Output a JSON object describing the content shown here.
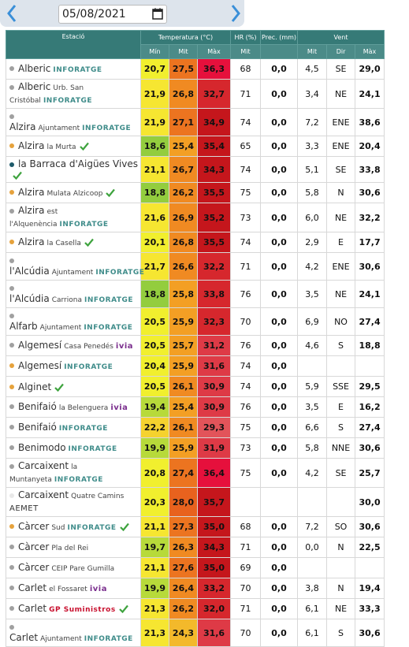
{
  "date": "05/08/2021",
  "table": {
    "headers": {
      "station": "Estació",
      "temp": "Temperatura (°C)",
      "hr": "HR (%)",
      "prec": "Prec. (mm)",
      "wind": "Vent",
      "min": "Mín",
      "mit": "Mit",
      "max": "Màx",
      "hr_mit": "Mit",
      "wind_mit": "Mit",
      "dir": "Dir",
      "wind_max": "Màx"
    },
    "rows": [
      {
        "name": "Alberic",
        "tag": "INFORATGE",
        "dot": "#a0a0a0",
        "tmin": "20,7",
        "tmit": "27,5",
        "tmax": "36,3",
        "hr": "68",
        "prec": "0,0",
        "wmit": "4,5",
        "dir": "SE",
        "wmax": "29,0"
      },
      {
        "name": "Alberic",
        "place": "Urb. San Cristóbal",
        "tag": "INFORATGE",
        "dot": "#a0a0a0",
        "tmin": "21,9",
        "tmit": "26,8",
        "tmax": "32,7",
        "hr": "71",
        "prec": "0,0",
        "wmit": "3,4",
        "dir": "NE",
        "wmax": "24,1"
      },
      {
        "name": "Alzira",
        "place": "Ajuntament",
        "tag": "INFORATGE",
        "dot": "#a0a0a0",
        "tmin": "21,9",
        "tmit": "27,1",
        "tmax": "34,9",
        "hr": "74",
        "prec": "0,0",
        "wmit": "7,2",
        "dir": "ENE",
        "wmax": "38,6"
      },
      {
        "name": "Alzira",
        "place": "la Murta",
        "check": true,
        "dot": "#e6a23c",
        "tmin": "18,6",
        "tmit": "25,4",
        "tmax": "35,4",
        "hr": "65",
        "prec": "0,0",
        "wmit": "3,3",
        "dir": "ENE",
        "wmax": "20,4"
      },
      {
        "name": "la Barraca d'Aigües Vives",
        "check": true,
        "dot": "#1d5a6a",
        "tmin": "21,1",
        "tmit": "26,7",
        "tmax": "34,3",
        "hr": "74",
        "prec": "0,0",
        "wmit": "5,1",
        "dir": "SE",
        "wmax": "33,8"
      },
      {
        "name": "Alzira",
        "place": "Mulata Alzicoop",
        "check": true,
        "dot": "#e6a23c",
        "tmin": "18,8",
        "tmit": "26,2",
        "tmax": "35,5",
        "hr": "75",
        "prec": "0,0",
        "wmit": "5,8",
        "dir": "N",
        "wmax": "30,6"
      },
      {
        "name": "Alzira",
        "place": "est l'Alquenència",
        "tag": "INFORATGE",
        "dot": "#a0a0a0",
        "tmin": "21,6",
        "tmit": "26,9",
        "tmax": "35,2",
        "hr": "73",
        "prec": "0,0",
        "wmit": "6,0",
        "dir": "NE",
        "wmax": "32,2"
      },
      {
        "name": "Alzira",
        "place": "la Casella",
        "check": true,
        "dot": "#e6a23c",
        "tmin": "20,1",
        "tmit": "26,8",
        "tmax": "35,5",
        "hr": "74",
        "prec": "0,0",
        "wmit": "2,9",
        "dir": "E",
        "wmax": "17,7"
      },
      {
        "name": "l'Alcúdia",
        "place": "Ajuntament",
        "tag": "INFORATGE",
        "dot": "#a0a0a0",
        "tmin": "21,7",
        "tmit": "26,6",
        "tmax": "32,2",
        "hr": "71",
        "prec": "0,0",
        "wmit": "4,2",
        "dir": "ENE",
        "wmax": "30,6"
      },
      {
        "name": "l'Alcúdia",
        "place": "Carriona",
        "tag": "INFORATGE",
        "dot": "#a0a0a0",
        "tmin": "18,8",
        "tmit": "25,8",
        "tmax": "33,8",
        "hr": "76",
        "prec": "0,0",
        "wmit": "3,5",
        "dir": "NE",
        "wmax": "24,1"
      },
      {
        "name": "Alfarb",
        "place": "Ajuntament",
        "tag": "INFORATGE",
        "dot": "#a0a0a0",
        "tmin": "20,5",
        "tmit": "25,9",
        "tmax": "32,3",
        "hr": "70",
        "prec": "0,0",
        "wmit": "6,9",
        "dir": "NO",
        "wmax": "27,4"
      },
      {
        "name": "Algemesí",
        "place": "Casa Penedés",
        "tag": "ivia",
        "dot": "#a0a0a0",
        "tmin": "20,5",
        "tmit": "25,7",
        "tmax": "31,2",
        "hr": "76",
        "prec": "0,0",
        "wmit": "4,6",
        "dir": "S",
        "wmax": "18,8"
      },
      {
        "name": "Algemesí",
        "tag": "INFORATGE",
        "dot": "#e6a23c",
        "tmin": "20,4",
        "tmit": "25,9",
        "tmax": "31,6",
        "hr": "74",
        "prec": "0,0",
        "wmit": null,
        "dir": null,
        "wmax": null
      },
      {
        "name": "Alginet",
        "check": true,
        "dot": "#e6a23c",
        "tmin": "20,5",
        "tmit": "26,1",
        "tmax": "30,9",
        "hr": "74",
        "prec": "0,0",
        "wmit": "5,9",
        "dir": "SSE",
        "wmax": "29,5"
      },
      {
        "name": "Benifaió",
        "place": "la Belenguera",
        "tag": "ivia",
        "dot": "#a0a0a0",
        "tmin": "19,4",
        "tmit": "25,4",
        "tmax": "30,9",
        "hr": "76",
        "prec": "0,0",
        "wmit": "3,5",
        "dir": "E",
        "wmax": "16,2"
      },
      {
        "name": "Benifaió",
        "tag": "INFORATGE",
        "dot": "#a0a0a0",
        "tmin": "22,2",
        "tmit": "26,1",
        "tmax": "29,3",
        "hr": "75",
        "prec": "0,0",
        "wmit": "6,6",
        "dir": "S",
        "wmax": "27,4"
      },
      {
        "name": "Benimodo",
        "tag": "INFORATGE",
        "dot": "#a0a0a0",
        "tmin": "19,9",
        "tmit": "25,9",
        "tmax": "31,9",
        "hr": "73",
        "prec": "0,0",
        "wmit": "5,8",
        "dir": "NNE",
        "wmax": "30,6"
      },
      {
        "name": "Carcaixent",
        "place": "la Muntanyeta",
        "tag": "INFORATGE",
        "dot": "#a0a0a0",
        "tmin": "20,8",
        "tmit": "27,4",
        "tmax": "36,4",
        "hr": "75",
        "prec": "0,0",
        "wmit": "4,2",
        "dir": "SE",
        "wmax": "25,7"
      },
      {
        "name": "Carcaixent",
        "place": "Quatre Camins",
        "tag": "AEMET",
        "dot": "#e8e8e8",
        "tmin": "20,3",
        "tmit": "28,0",
        "tmax": "35,7",
        "hr": null,
        "prec": null,
        "wmit": null,
        "dir": null,
        "wmax": "30,0"
      },
      {
        "name": "Càrcer",
        "place": "Sud",
        "tag": "INFORATGE",
        "check": true,
        "dot": "#e6a23c",
        "tmin": "21,1",
        "tmit": "27,3",
        "tmax": "35,0",
        "hr": "68",
        "prec": "0,0",
        "wmit": "7,2",
        "dir": "SO",
        "wmax": "30,6"
      },
      {
        "name": "Càrcer",
        "place": "Pla del Rei",
        "dot": "#a0a0a0",
        "tmin": "19,7",
        "tmit": "26,3",
        "tmax": "34,3",
        "hr": "71",
        "prec": "0,0",
        "wmit": "0,0",
        "dir": "N",
        "wmax": "22,5"
      },
      {
        "name": "Càrcer",
        "place": "CEIP Pare Gumilla",
        "dot": "#a0a0a0",
        "tmin": "21,1",
        "tmit": "27,6",
        "tmax": "35,0",
        "hr": "69",
        "prec": "0,0",
        "wmit": null,
        "dir": null,
        "wmax": null
      },
      {
        "name": "Carlet",
        "place": "el Fossaret",
        "tag": "ivia",
        "dot": "#a0a0a0",
        "tmin": "19,9",
        "tmit": "26,4",
        "tmax": "33,2",
        "hr": "70",
        "prec": "0,0",
        "wmit": "3,8",
        "dir": "N",
        "wmax": "19,4"
      },
      {
        "name": "Carlet",
        "tag": "GP Suministros",
        "check": true,
        "dot": "#a0a0a0",
        "tmin": "21,3",
        "tmit": "26,2",
        "tmax": "32,0",
        "hr": "71",
        "prec": "0,0",
        "wmit": "6,1",
        "dir": "NE",
        "wmax": "33,3"
      },
      {
        "name": "Carlet",
        "place": "Ajuntament",
        "tag": "INFORATGE",
        "dot": "#a0a0a0",
        "tmin": "21,3",
        "tmit": "24,3",
        "tmax": "31,6",
        "hr": "70",
        "prec": "0,0",
        "wmit": "6,1",
        "dir": "S",
        "wmax": "30,6"
      }
    ]
  }
}
